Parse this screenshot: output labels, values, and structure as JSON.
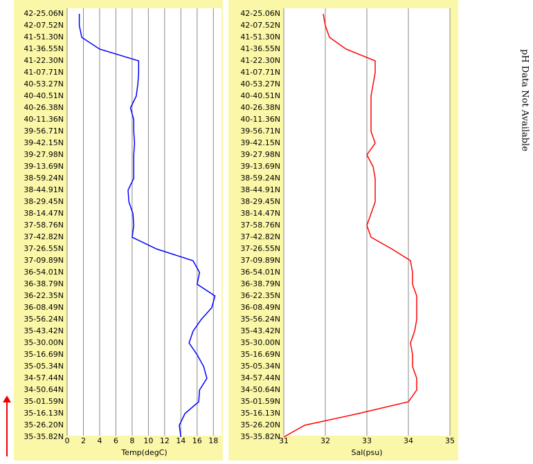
{
  "chart_data": [
    {
      "type": "line",
      "orientation": "horizontal",
      "xlabel": "Temp(degC)",
      "categories": [
        "42-25.06N",
        "42-07.52N",
        "41-51.30N",
        "41-36.55N",
        "41-22.30N",
        "41-07.71N",
        "40-53.27N",
        "40-40.51N",
        "40-26.38N",
        "40-11.36N",
        "39-56.71N",
        "39-42.15N",
        "39-27.98N",
        "39-13.69N",
        "38-59.24N",
        "38-44.91N",
        "38-29.45N",
        "38-14.47N",
        "37-58.76N",
        "37-42.82N",
        "37-26.55N",
        "37-09.89N",
        "36-54.01N",
        "36-38.79N",
        "36-22.35N",
        "36-08.49N",
        "35-56.24N",
        "35-43.42N",
        "35-30.00N",
        "35-16.69N",
        "35-05.34N",
        "34-57.44N",
        "34-50.64N",
        "35-01.59N",
        "35-16.13N",
        "35-26.20N",
        "35-35.82N"
      ],
      "series": [
        {
          "name": "Temp",
          "color": "#0000ff",
          "values": [
            1.5,
            1.5,
            1.8,
            4,
            8.8,
            8.8,
            8.7,
            8.5,
            7.8,
            8.2,
            8.2,
            8.3,
            8.2,
            8.2,
            8.2,
            7.5,
            7.6,
            8.1,
            8.2,
            8.0,
            11,
            15.5,
            16.3,
            16.0,
            18.2,
            17.8,
            16.5,
            15.5,
            15.0,
            16.0,
            16.8,
            17.2,
            16.3,
            16.2,
            14.5,
            13.8,
            14.0
          ]
        }
      ],
      "xlim": [
        0,
        19
      ],
      "xticks": [
        0,
        2,
        4,
        6,
        8,
        10,
        12,
        14,
        16,
        18
      ],
      "grid": true
    },
    {
      "type": "line",
      "orientation": "horizontal",
      "xlabel": "Sal(psu)",
      "categories": [
        "42-25.06N",
        "42-07.52N",
        "41-51.30N",
        "41-36.55N",
        "41-22.30N",
        "41-07.71N",
        "40-53.27N",
        "40-40.51N",
        "40-26.38N",
        "40-11.36N",
        "39-56.71N",
        "39-42.15N",
        "39-27.98N",
        "39-13.69N",
        "38-59.24N",
        "38-44.91N",
        "38-29.45N",
        "38-14.47N",
        "37-58.76N",
        "37-42.82N",
        "37-26.55N",
        "37-09.89N",
        "36-54.01N",
        "36-38.79N",
        "36-22.35N",
        "36-08.49N",
        "35-56.24N",
        "35-43.42N",
        "35-30.00N",
        "35-16.69N",
        "35-05.34N",
        "34-57.44N",
        "34-50.64N",
        "35-01.59N",
        "35-16.13N",
        "35-26.20N",
        "35-35.82N"
      ],
      "series": [
        {
          "name": "Sal",
          "color": "#ff0000",
          "values": [
            31.95,
            32.0,
            32.1,
            32.5,
            33.2,
            33.2,
            33.15,
            33.1,
            33.1,
            33.1,
            33.1,
            33.2,
            33.0,
            33.15,
            33.2,
            33.2,
            33.2,
            33.1,
            33.0,
            33.1,
            33.6,
            34.05,
            34.1,
            34.1,
            34.2,
            34.2,
            34.2,
            34.15,
            34.05,
            34.1,
            34.1,
            34.2,
            34.2,
            34.0,
            32.8,
            31.5,
            31.0
          ]
        }
      ],
      "xlim": [
        31,
        35
      ],
      "xticks": [
        31,
        32,
        33,
        34,
        35
      ],
      "grid": true
    }
  ],
  "annotation": "pH Data Not Available"
}
